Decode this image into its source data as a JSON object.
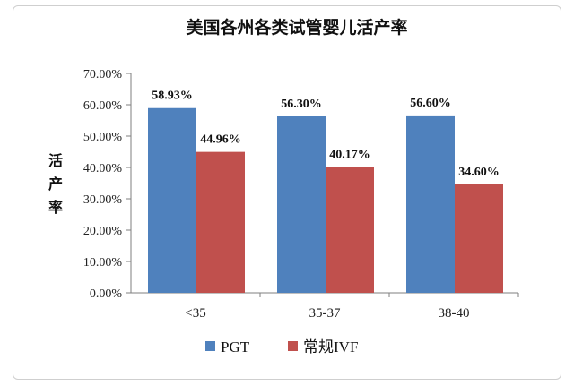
{
  "chart_data": {
    "type": "bar",
    "title": "美国各州各类试管婴儿活产率",
    "ylabel": "活产率",
    "xlabel": "",
    "categories": [
      "<35",
      "35-37",
      "38-40"
    ],
    "series": [
      {
        "name": "PGT",
        "values": [
          58.93,
          56.3,
          56.6
        ],
        "labels": [
          "58.93%",
          "56.30%",
          "56.60%"
        ],
        "color": "#4f81bd"
      },
      {
        "name": "常规IVF",
        "values": [
          44.96,
          40.17,
          34.6
        ],
        "labels": [
          "44.96%",
          "40.17%",
          "34.60%"
        ],
        "color": "#c0504d"
      }
    ],
    "ylim": [
      0,
      70
    ],
    "yticks": [
      0,
      10,
      20,
      30,
      40,
      50,
      60,
      70
    ],
    "ytick_labels": [
      "0.00%",
      "10.00%",
      "20.00%",
      "30.00%",
      "40.00%",
      "50.00%",
      "60.00%",
      "70.00%"
    ],
    "grid": false,
    "legend_position": "bottom"
  }
}
